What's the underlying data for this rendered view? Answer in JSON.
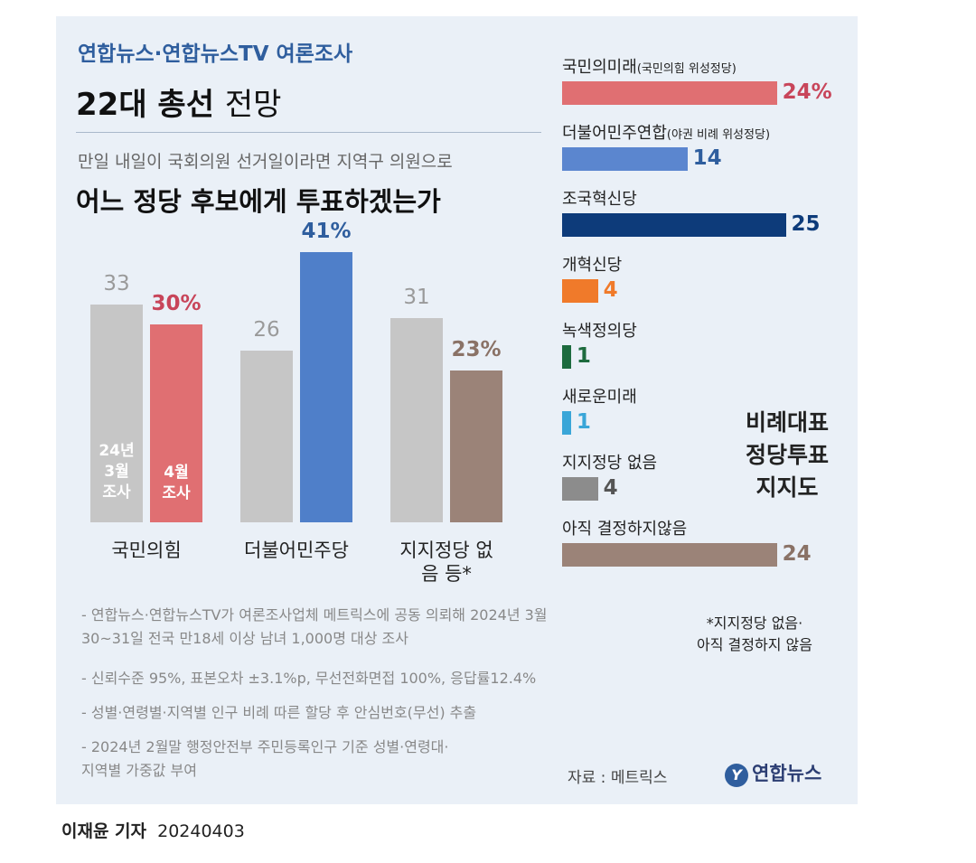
{
  "header": {
    "org": "연합뉴스·연합뉴스TV 여론조사",
    "title_bold": "22대 총선",
    "title_light": "전망",
    "question_line1": "만일 내일이 국회의원 선거일이라면 지역구 의원으로",
    "question_line2": "어느 정당 후보에게 투표하겠는가"
  },
  "chart_data": [
    {
      "type": "bar",
      "title": "",
      "categories": [
        "국민의힘",
        "더불어민주당",
        "지지정당 없음 등*"
      ],
      "series": [
        {
          "name": "24년 3월 조사",
          "values": [
            33,
            26,
            31
          ],
          "labels": [
            "33",
            "26",
            "31"
          ],
          "color": "#c6c6c6"
        },
        {
          "name": "4월 조사",
          "values": [
            30,
            41,
            23
          ],
          "labels": [
            "30%",
            "41%",
            "23%"
          ],
          "colors": [
            "#e06f72",
            "#4f7fc9",
            "#9b8378"
          ],
          "label_colors": [
            "#c8455a",
            "#2f5e9e",
            "#8a7266"
          ]
        }
      ],
      "in_bar_labels": {
        "march": "24년\n3월\n조사",
        "april": "4월\n조사"
      },
      "ylim": [
        0,
        45
      ]
    },
    {
      "type": "bar",
      "orientation": "horizontal",
      "title": "비례대표\n정당투표\n지지도",
      "categories": [
        "국민의미래",
        "더불어민주연합",
        "조국혁신당",
        "개혁신당",
        "녹색정의당",
        "새로운미래",
        "지지정당 없음",
        "아직 결정하지않음"
      ],
      "category_notes": [
        "(국민의힘 위성정당)",
        "(야권 비례 위성정당)",
        "",
        "",
        "",
        "",
        "",
        ""
      ],
      "values": [
        24,
        14,
        25,
        4,
        1,
        1,
        4,
        24
      ],
      "labels": [
        "24%",
        "14",
        "25",
        "4",
        "1",
        "1",
        "4",
        "24"
      ],
      "colors": [
        "#e06f72",
        "#5b86cf",
        "#0d3b7a",
        "#f07a2a",
        "#1d6b3e",
        "#3aa6d8",
        "#8c8c8c",
        "#9b8378"
      ],
      "label_colors": [
        "#c8455a",
        "#2f5e9e",
        "#0d3b7a",
        "#f07a2a",
        "#1d6b3e",
        "#3aa6d8",
        "#555555",
        "#8a7266"
      ],
      "xlim": [
        0,
        25
      ]
    }
  ],
  "notes": [
    "- 연합뉴스·연합뉴스TV가 여론조사업체 메트릭스에 공동 의뢰해 2024년 3월30~31일 전국 만18세 이상 남녀 1,000명 대상 조사",
    "- 신뢰수준 95%, 표본오차 ±3.1%p, 무선전화면접 100%, 응답률12.4%",
    "- 성별·연령별·지역별 인구 비례 따른 할당 후 안심번호(무선) 추출",
    "- 2024년 2월말 행정안전부 주민등록인구 기준 성별·연령대·지역별 가중값 부여"
  ],
  "footnote": "*지지정당 없음·\n아직 결정하지 않음",
  "source": "자료 : 메트릭스",
  "logo": {
    "mark": "Y",
    "text": "연합뉴스"
  },
  "credit": {
    "reporter": "이재윤 기자",
    "date": "20240403"
  }
}
